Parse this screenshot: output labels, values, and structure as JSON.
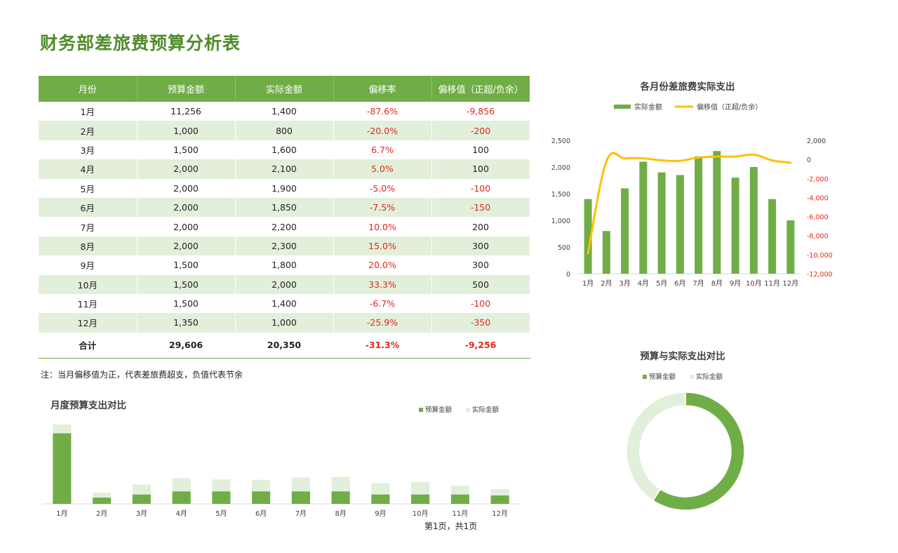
{
  "page": {
    "title": "财务部差旅费预算分析表",
    "note": "注：当月偏移值为正，代表差旅费超支，负值代表节余",
    "footer": "第1页，共1页"
  },
  "table": {
    "headers": [
      "月份",
      "预算金额",
      "实际金额",
      "偏移率",
      "偏移值（正超/负余）"
    ],
    "rows": [
      [
        "1月",
        "11,256",
        "1,400",
        "-87.6%",
        "-9,856"
      ],
      [
        "2月",
        "1,000",
        "800",
        "-20.0%",
        "-200"
      ],
      [
        "3月",
        "1,500",
        "1,600",
        "6.7%",
        "100"
      ],
      [
        "4月",
        "2,000",
        "2,100",
        "5.0%",
        "100"
      ],
      [
        "5月",
        "2,000",
        "1,900",
        "-5.0%",
        "-100"
      ],
      [
        "6月",
        "2,000",
        "1,850",
        "-7.5%",
        "-150"
      ],
      [
        "7月",
        "2,000",
        "2,200",
        "10.0%",
        "200"
      ],
      [
        "8月",
        "2,000",
        "2,300",
        "15.0%",
        "300"
      ],
      [
        "9月",
        "1,500",
        "1,800",
        "20.0%",
        "300"
      ],
      [
        "10月",
        "1,500",
        "2,000",
        "33.3%",
        "500"
      ],
      [
        "11月",
        "1,500",
        "1,400",
        "-6.7%",
        "-100"
      ],
      [
        "12月",
        "1,350",
        "1,000",
        "-25.9%",
        "-350"
      ]
    ],
    "total": [
      "合计",
      "29,606",
      "20,350",
      "-31.3%",
      "-9,256"
    ]
  },
  "colors": {
    "green": "#70ad47",
    "light_green": "#e2efda",
    "yellow": "#ffc000",
    "red": "#e0281e",
    "title_green": "#4f8c2a"
  },
  "chart_data": [
    {
      "id": "monthly-actual",
      "type": "bar+line",
      "title": "各月份差旅费实际支出",
      "categories": [
        "1月",
        "2月",
        "3月",
        "4月",
        "5月",
        "6月",
        "7月",
        "8月",
        "9月",
        "10月",
        "11月",
        "12月"
      ],
      "series": [
        {
          "name": "实际金额",
          "type": "bar",
          "axis": "left",
          "values": [
            1400,
            800,
            1600,
            2100,
            1900,
            1850,
            2200,
            2300,
            1800,
            2000,
            1400,
            1000
          ]
        },
        {
          "name": "偏移值（正超/负余）",
          "type": "line",
          "axis": "right",
          "values": [
            -9856,
            -200,
            100,
            100,
            -100,
            -150,
            200,
            300,
            300,
            500,
            -100,
            -350
          ]
        }
      ],
      "ylim_left": [
        0,
        2500
      ],
      "yticks_left": [
        "0",
        "500",
        "1,000",
        "1,500",
        "2,000",
        "2,500"
      ],
      "ylim_right": [
        -12000,
        2000
      ],
      "yticks_right": [
        "-12,000",
        "-10,000",
        "-8,000",
        "-6,000",
        "-4,000",
        "-2,000",
        "0",
        "2,000"
      ],
      "legend": "top"
    },
    {
      "id": "budget-vs-actual-donut",
      "type": "pie",
      "title": "预算与实际支出对比",
      "labels": [
        "预算金额",
        "实际金额"
      ],
      "values": [
        29606,
        20350
      ],
      "legend": "top"
    },
    {
      "id": "monthly-stacked",
      "type": "bar",
      "title": "月度预算支出对比",
      "categories": [
        "1月",
        "2月",
        "3月",
        "4月",
        "5月",
        "6月",
        "7月",
        "8月",
        "9月",
        "10月",
        "11月",
        "12月"
      ],
      "series": [
        {
          "name": "预算金额",
          "values": [
            11256,
            1000,
            1500,
            2000,
            2000,
            2000,
            2000,
            2000,
            1500,
            1500,
            1500,
            1350
          ]
        },
        {
          "name": "实际金额",
          "values": [
            1400,
            800,
            1600,
            2100,
            1900,
            1850,
            2200,
            2300,
            1800,
            2000,
            1400,
            1000
          ]
        }
      ],
      "stacked": true,
      "legend": "top-right"
    }
  ]
}
